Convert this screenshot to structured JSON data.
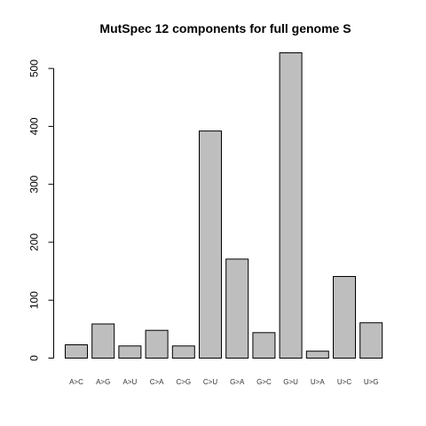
{
  "chart_data": {
    "type": "bar",
    "title": "MutSpec 12 components for full genome S",
    "xlabel": "",
    "ylabel": "",
    "categories": [
      "A>C",
      "A>G",
      "A>U",
      "C>A",
      "C>G",
      "C>U",
      "G>A",
      "G>C",
      "G>U",
      "U>A",
      "U>C",
      "U>G"
    ],
    "values": [
      23,
      59,
      21,
      48,
      21,
      392,
      171,
      44,
      527,
      12,
      141,
      61
    ],
    "ylim": [
      0,
      527
    ],
    "yticks": [
      "0",
      "100",
      "200",
      "300",
      "400",
      "500"
    ],
    "grid": false,
    "bar_color": "#bebebe"
  }
}
